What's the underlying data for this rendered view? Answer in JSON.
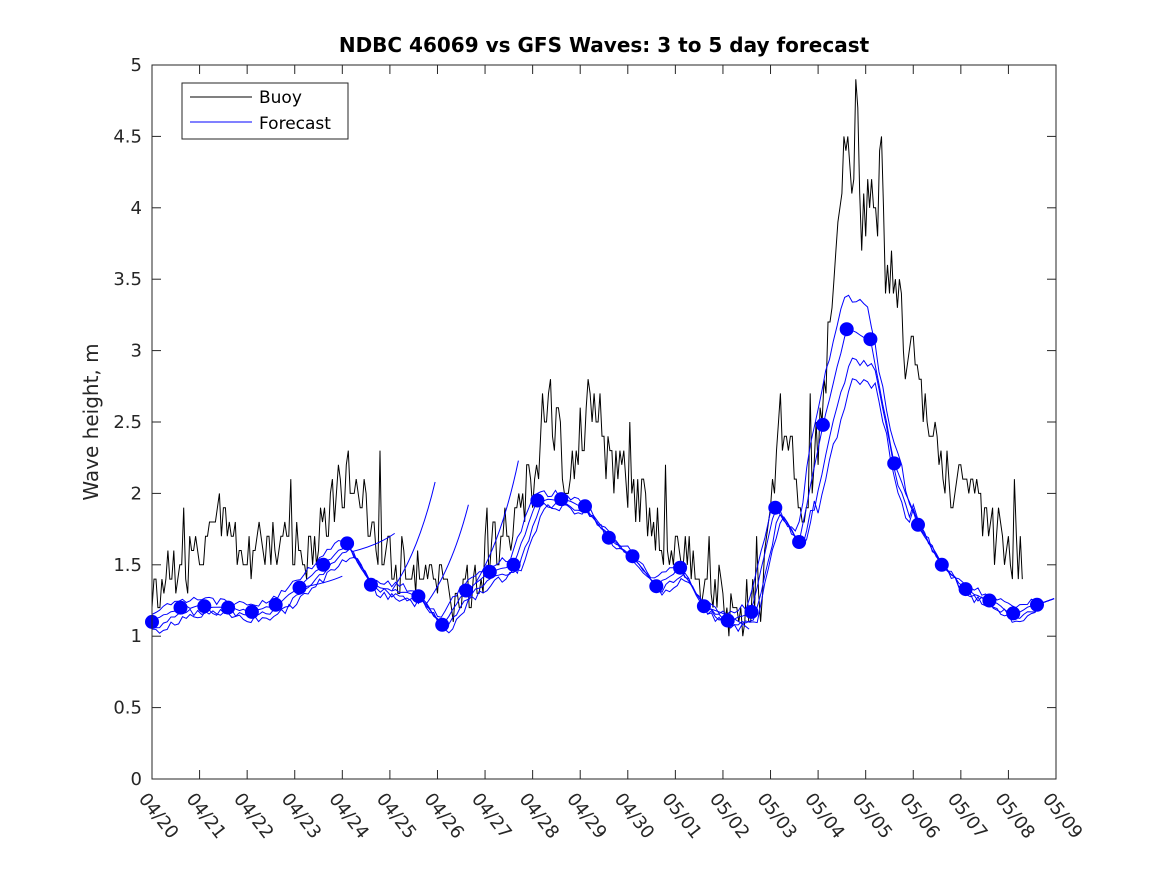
{
  "chart_data": {
    "type": "line",
    "title": "NDBC 46069 vs GFS Waves: 3 to 5 day forecast",
    "xlabel": "",
    "ylabel": "Wave height, m",
    "ylim": [
      0,
      5
    ],
    "xlim": [
      0,
      19
    ],
    "yticks": [
      0,
      0.5,
      1,
      1.5,
      2,
      2.5,
      3,
      3.5,
      4,
      4.5,
      5
    ],
    "ytick_labels": [
      "0",
      "0.5",
      "1",
      "1.5",
      "2",
      "2.5",
      "3",
      "3.5",
      "4",
      "4.5",
      "5"
    ],
    "xtick_labels": [
      "04/20",
      "04/21",
      "04/22",
      "04/23",
      "04/24",
      "04/25",
      "04/26",
      "04/27",
      "04/28",
      "04/29",
      "04/30",
      "05/01",
      "05/02",
      "05/03",
      "05/04",
      "05/05",
      "05/06",
      "05/07",
      "05/08",
      "05/09"
    ],
    "legend": {
      "position": "top-left",
      "entries": [
        "Buoy",
        "Forecast"
      ]
    },
    "colors": {
      "buoy": "#000000",
      "forecast": "#0000ff",
      "markers": "#0000ff"
    },
    "buoy_keypoints": [
      [
        0.0,
        1.3
      ],
      [
        0.3,
        1.45
      ],
      [
        0.6,
        1.5
      ],
      [
        1.0,
        1.55
      ],
      [
        1.3,
        1.7
      ],
      [
        1.5,
        1.9
      ],
      [
        1.7,
        1.65
      ],
      [
        2.0,
        1.62
      ],
      [
        2.3,
        1.65
      ],
      [
        2.6,
        1.7
      ],
      [
        3.0,
        1.6
      ],
      [
        3.3,
        1.65
      ],
      [
        3.6,
        1.75
      ],
      [
        3.8,
        1.9
      ],
      [
        4.1,
        2.1
      ],
      [
        4.3,
        2.25
      ],
      [
        4.5,
        1.85
      ],
      [
        4.8,
        1.7
      ],
      [
        5.1,
        1.55
      ],
      [
        5.4,
        1.45
      ],
      [
        5.7,
        1.42
      ],
      [
        6.0,
        1.35
      ],
      [
        6.2,
        1.3
      ],
      [
        6.4,
        1.2
      ],
      [
        6.6,
        1.3
      ],
      [
        6.8,
        1.4
      ],
      [
        7.0,
        1.5
      ],
      [
        7.3,
        1.65
      ],
      [
        7.6,
        1.75
      ],
      [
        7.8,
        1.9
      ],
      [
        8.0,
        2.1
      ],
      [
        8.3,
        2.65
      ],
      [
        8.5,
        2.5
      ],
      [
        8.7,
        1.9
      ],
      [
        8.9,
        2.3
      ],
      [
        9.2,
        2.75
      ],
      [
        9.5,
        2.4
      ],
      [
        9.8,
        2.15
      ],
      [
        10.1,
        2.0
      ],
      [
        10.4,
        1.9
      ],
      [
        10.7,
        1.7
      ],
      [
        11.0,
        1.6
      ],
      [
        11.3,
        1.55
      ],
      [
        11.6,
        1.4
      ],
      [
        11.9,
        1.3
      ],
      [
        12.2,
        1.2
      ],
      [
        12.5,
        1.22
      ],
      [
        12.8,
        1.3
      ],
      [
        13.0,
        1.75
      ],
      [
        13.2,
        2.6
      ],
      [
        13.4,
        2.35
      ],
      [
        13.6,
        1.95
      ],
      [
        13.9,
        2.1
      ],
      [
        14.1,
        2.6
      ],
      [
        14.3,
        3.3
      ],
      [
        14.5,
        4.2
      ],
      [
        14.7,
        4.35
      ],
      [
        14.9,
        4.0
      ],
      [
        15.1,
        3.95
      ],
      [
        15.3,
        3.85
      ],
      [
        15.5,
        3.5
      ],
      [
        15.7,
        3.3
      ],
      [
        15.9,
        3.0
      ],
      [
        16.1,
        2.75
      ],
      [
        16.3,
        2.5
      ],
      [
        16.5,
        2.35
      ],
      [
        16.7,
        2.15
      ],
      [
        16.9,
        2.05
      ],
      [
        17.1,
        1.95
      ],
      [
        17.3,
        1.9
      ],
      [
        17.5,
        1.85
      ],
      [
        17.7,
        1.7
      ],
      [
        17.9,
        1.6
      ],
      [
        18.1,
        1.55
      ],
      [
        18.3,
        1.55
      ]
    ],
    "forecast_markers": [
      [
        0.0,
        1.1
      ],
      [
        0.6,
        1.2
      ],
      [
        1.1,
        1.21
      ],
      [
        1.6,
        1.2
      ],
      [
        2.1,
        1.17
      ],
      [
        2.6,
        1.22
      ],
      [
        3.1,
        1.34
      ],
      [
        3.6,
        1.5
      ],
      [
        4.1,
        1.65
      ],
      [
        4.6,
        1.36
      ],
      [
        5.6,
        1.28
      ],
      [
        6.1,
        1.08
      ],
      [
        6.6,
        1.32
      ],
      [
        7.1,
        1.45
      ],
      [
        7.6,
        1.5
      ],
      [
        8.1,
        1.95
      ],
      [
        8.6,
        1.96
      ],
      [
        9.1,
        1.91
      ],
      [
        9.6,
        1.69
      ],
      [
        10.1,
        1.56
      ],
      [
        10.6,
        1.35
      ],
      [
        11.1,
        1.48
      ],
      [
        11.6,
        1.21
      ],
      [
        12.1,
        1.11
      ],
      [
        12.6,
        1.17
      ],
      [
        13.1,
        1.9
      ],
      [
        13.6,
        1.66
      ],
      [
        14.1,
        2.48
      ],
      [
        14.6,
        3.15
      ],
      [
        15.1,
        3.08
      ],
      [
        15.6,
        2.21
      ],
      [
        16.1,
        1.78
      ],
      [
        16.6,
        1.5
      ],
      [
        17.1,
        1.33
      ],
      [
        17.6,
        1.25
      ],
      [
        18.1,
        1.16
      ],
      [
        18.6,
        1.22
      ]
    ],
    "forecast_line_endpoints": [
      [
        4.0,
        1.42
      ],
      [
        5.1,
        1.72
      ],
      [
        5.95,
        2.08
      ],
      [
        6.65,
        1.92
      ],
      [
        7.7,
        2.23
      ],
      [
        12.55,
        1.05
      ]
    ]
  }
}
